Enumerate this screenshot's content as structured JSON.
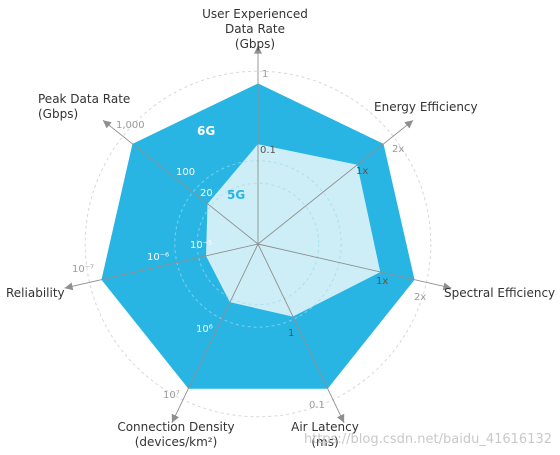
{
  "chart_data": {
    "type": "radar",
    "title": "",
    "axes": [
      {
        "id": "user-data-rate",
        "label_lines": [
          "User Experienced",
          "Data Rate",
          "(Gbps)"
        ],
        "outer_tick": "1",
        "inner_ticks": [
          "0.1"
        ]
      },
      {
        "id": "energy-efficiency",
        "label_lines": [
          "Energy Efficiency"
        ],
        "outer_tick": "2x",
        "inner_ticks": [
          "1x"
        ]
      },
      {
        "id": "spectral-efficiency",
        "label_lines": [
          "Spectral Efficiency"
        ],
        "outer_tick": "2x",
        "inner_ticks": [
          "1x"
        ]
      },
      {
        "id": "air-latency",
        "label_lines": [
          "Air Latency",
          "(ms)"
        ],
        "outer_tick": "0.1",
        "inner_ticks": [
          "1"
        ]
      },
      {
        "id": "connection-density",
        "label_lines": [
          "Connection Density",
          "(devices/km²)"
        ],
        "outer_tick": "10⁷",
        "inner_ticks": [
          "10⁶"
        ]
      },
      {
        "id": "reliability",
        "label_lines": [
          "Reliability"
        ],
        "outer_tick": "10⁻⁷",
        "inner_ticks": [
          "10⁻⁶",
          "10⁻⁵"
        ]
      },
      {
        "id": "peak-data-rate",
        "label_lines": [
          "Peak Data Rate",
          "(Gbps)"
        ],
        "outer_tick": "1,000",
        "inner_ticks": [
          "100",
          "20"
        ]
      }
    ],
    "series": [
      {
        "name": "6G",
        "color": "#29b5e3",
        "values": [
          1,
          1,
          1,
          1,
          1,
          1,
          1
        ]
      },
      {
        "name": "5G",
        "color": "#cdeef6",
        "values": [
          0.62,
          0.79,
          0.78,
          0.5,
          0.4,
          0.33,
          0.4
        ]
      }
    ],
    "range": [
      0,
      1
    ],
    "grid": true,
    "grid_style": "dashed circles",
    "watermark": "https://blog.csdn.net/baidu_41616132"
  }
}
